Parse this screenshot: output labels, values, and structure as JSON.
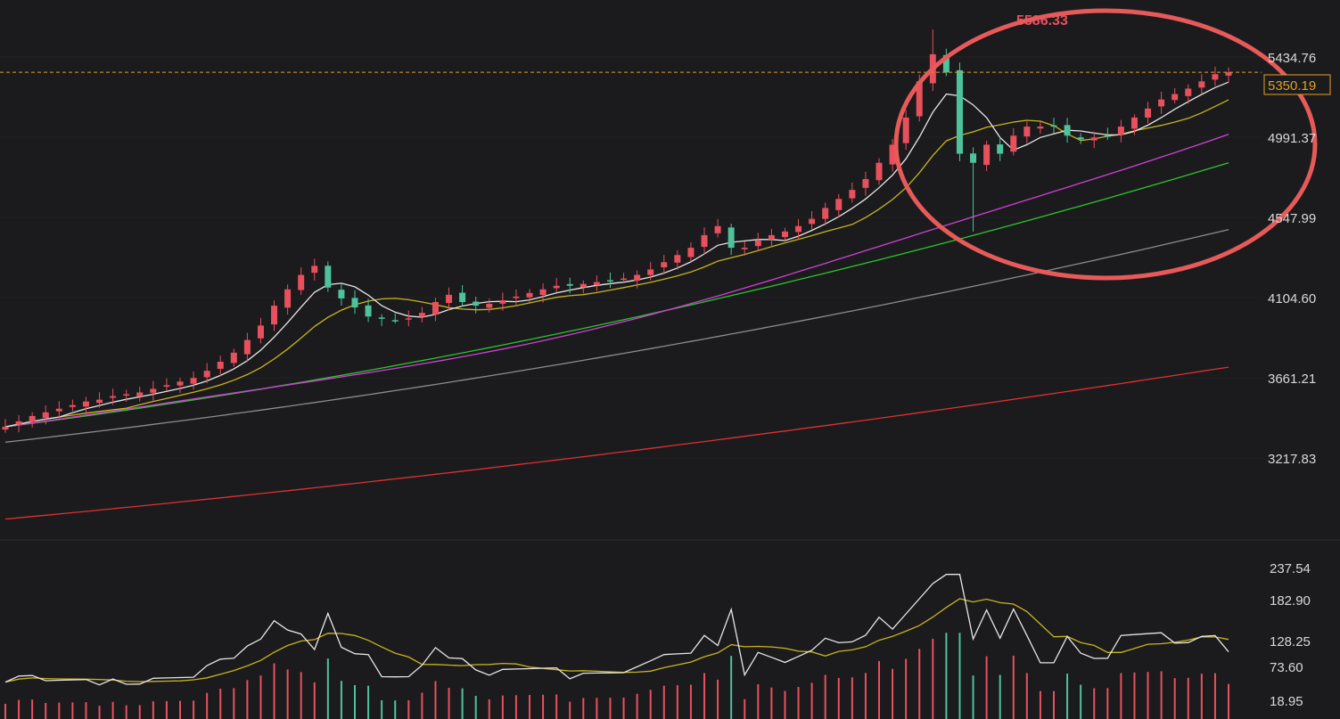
{
  "chart_data": {
    "type": "candlestick",
    "price_axis": {
      "labels": [
        "5434.76",
        "4991.37",
        "4547.99",
        "4104.60",
        "3661.21",
        "3217.83"
      ],
      "current_price_label": "5350.19",
      "current_price": 5350.19
    },
    "peak_label": "5586.33",
    "peak_price": 5586.33,
    "volume_axis": {
      "labels": [
        "237.54",
        "182.90",
        "128.25",
        "73.60",
        "18.95"
      ]
    },
    "colors": {
      "background": "#1b1b1d",
      "up": "#e8505e",
      "down": "#4ec29a",
      "ma_white": "#e6e6e6",
      "ma_yellow": "#c8b41e",
      "ma_magenta": "#d040d8",
      "ma_green": "#2cc62c",
      "ma_gray": "#8c8c8c",
      "ma_red": "#e03030",
      "price_line": "#e0a028",
      "highlight_ellipse": "#e85a5a"
    },
    "price_series": [
      3390,
      3420,
      3450,
      3470,
      3490,
      3510,
      3530,
      3540,
      3560,
      3570,
      3580,
      3600,
      3620,
      3640,
      3660,
      3700,
      3750,
      3800,
      3870,
      3950,
      4060,
      4150,
      4230,
      4280,
      4160,
      4100,
      4050,
      4000,
      3990,
      3980,
      3990,
      4020,
      4080,
      4120,
      4080,
      4060,
      4070,
      4090,
      4110,
      4130,
      4150,
      4170,
      4170,
      4180,
      4190,
      4200,
      4210,
      4230,
      4260,
      4300,
      4340,
      4380,
      4450,
      4500,
      4380,
      4380,
      4420,
      4450,
      4470,
      4500,
      4540,
      4600,
      4650,
      4700,
      4760,
      4850,
      4950,
      5100,
      5300,
      5450,
      5350,
      4900,
      4850,
      4950,
      4900,
      5000,
      5050,
      5050,
      5050,
      5000,
      4980,
      4990,
      5000,
      5050,
      5100,
      5150,
      5200,
      5230,
      5260,
      5300,
      5340,
      5350
    ]
  }
}
